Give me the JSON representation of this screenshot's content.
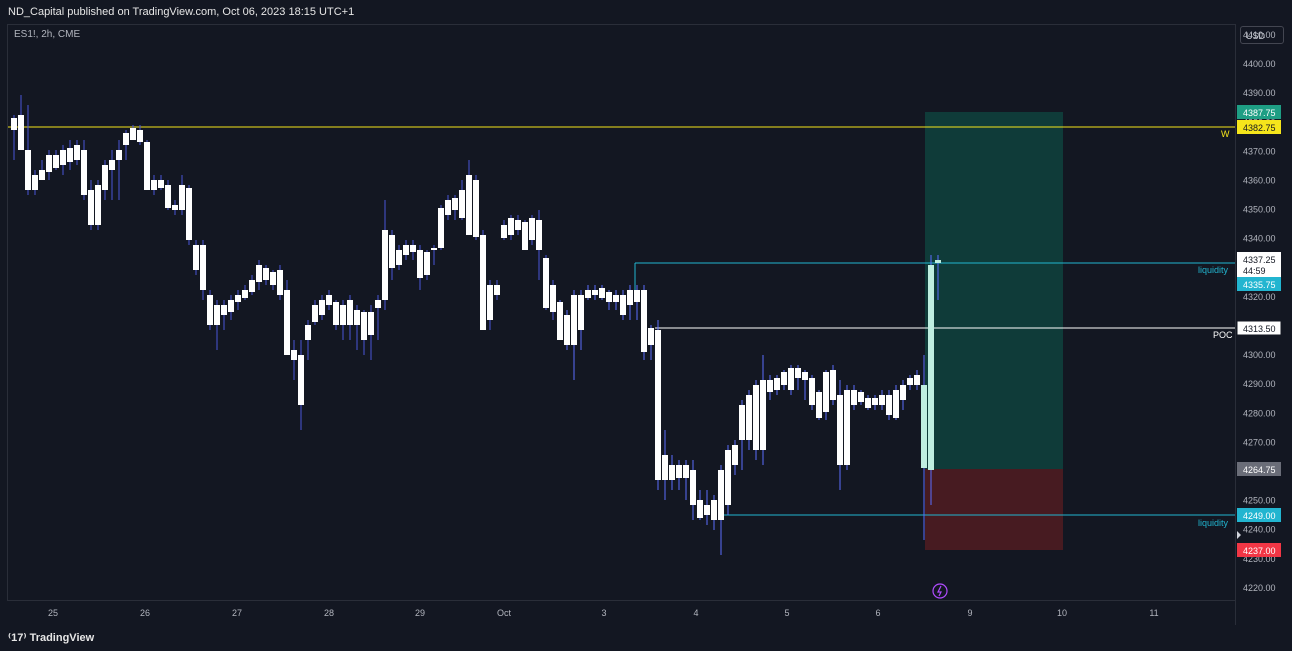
{
  "header": {
    "publisher_line": "ND_Capital published on TradingView.com, Oct 06, 2023 18:15 UTC+1"
  },
  "symbol": {
    "info": "ES1!, 2h, CME"
  },
  "currency": "USD",
  "price_ticks": [
    "4410.00",
    "4400.00",
    "4390.00",
    "4380.00",
    "4370.00",
    "4360.00",
    "4350.00",
    "4340.00",
    "4330.00",
    "4320.00",
    "4310.00",
    "4300.00",
    "4290.00",
    "4280.00",
    "4270.00",
    "4260.00",
    "4250.00",
    "4240.00",
    "4230.00",
    "4220.00"
  ],
  "time_ticks": [
    "25",
    "26",
    "27",
    "28",
    "29",
    "Oct",
    "3",
    "4",
    "5",
    "6",
    "9",
    "10",
    "11"
  ],
  "price_tags": {
    "target": "4387.75",
    "w_level": "4382.75",
    "last": "4337.25",
    "countdown": "44:59",
    "liquidity_high": "4335.75",
    "poc": "4313.50",
    "entry": "4264.75",
    "liquidity_low": "4249.00",
    "stop": "4237.00"
  },
  "line_labels": {
    "w": "W",
    "liquidity_high": "liquidity",
    "poc": "POC",
    "liquidity_low": "liquidity"
  },
  "footer": {
    "logo_text": "TradingView"
  },
  "colors": {
    "background": "#131722",
    "candle": "#ffffff",
    "wick_recent": "#7b61ff",
    "w_line": "#f5e51b",
    "liquidity_line": "#22b5d0",
    "poc_line": "#ffffff",
    "target_zone": "#0c5a4c",
    "stop_zone": "#5a1e22",
    "tag_target": "#1e9e84",
    "tag_w": "#f5e51b",
    "tag_liquidity": "#22b5d0",
    "tag_entry": "#6a6d78",
    "tag_stop": "#f23645"
  }
}
